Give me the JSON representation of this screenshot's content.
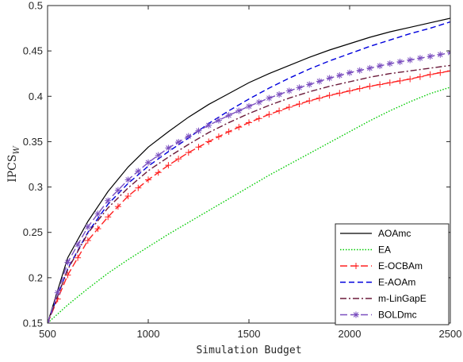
{
  "chart_data": {
    "type": "line",
    "title": "",
    "xlabel": "Simulation Budget",
    "ylabel": "IPCS",
    "ylabel_subscript": "W",
    "xlim": [
      500,
      2500
    ],
    "ylim": [
      0.15,
      0.5
    ],
    "xticks": [
      500,
      1000,
      1500,
      2000,
      2500
    ],
    "xtick_labels": [
      "500",
      "1000",
      "1500",
      "2000",
      "2500"
    ],
    "yticks": [
      0.15,
      0.2,
      0.25,
      0.3,
      0.35,
      0.4,
      0.45,
      0.5
    ],
    "ytick_labels": [
      "0.15",
      "0.2",
      "0.25",
      "0.3",
      "0.35",
      "0.4",
      "0.45",
      "0.5"
    ],
    "grid": false,
    "legend_position": "bottom-right",
    "x": [
      500,
      600,
      700,
      800,
      900,
      1000,
      1100,
      1200,
      1300,
      1400,
      1500,
      1600,
      1700,
      1800,
      1900,
      2000,
      2100,
      2200,
      2300,
      2400,
      2500
    ],
    "series": [
      {
        "name": "AOAmc",
        "color": "#000000",
        "dash": "",
        "marker": "",
        "values": [
          0.15,
          0.222,
          0.262,
          0.295,
          0.322,
          0.344,
          0.361,
          0.377,
          0.391,
          0.403,
          0.415,
          0.425,
          0.434,
          0.443,
          0.451,
          0.458,
          0.465,
          0.471,
          0.476,
          0.481,
          0.486
        ]
      },
      {
        "name": "EA",
        "color": "#00cc00",
        "dash": "1.5,2",
        "marker": "",
        "values": [
          0.15,
          0.17,
          0.188,
          0.205,
          0.22,
          0.234,
          0.248,
          0.261,
          0.274,
          0.287,
          0.3,
          0.313,
          0.325,
          0.337,
          0.349,
          0.361,
          0.373,
          0.384,
          0.394,
          0.403,
          0.41
        ]
      },
      {
        "name": "E-OCBAm",
        "color": "#ff2020",
        "dash": "9,4",
        "marker": "plus",
        "values": [
          0.15,
          0.203,
          0.241,
          0.267,
          0.29,
          0.308,
          0.324,
          0.338,
          0.35,
          0.361,
          0.371,
          0.38,
          0.388,
          0.395,
          0.401,
          0.406,
          0.411,
          0.415,
          0.419,
          0.424,
          0.428
        ]
      },
      {
        "name": "E-AOAm",
        "color": "#0000dd",
        "dash": "7,4",
        "marker": "",
        "values": [
          0.15,
          0.21,
          0.25,
          0.281,
          0.304,
          0.323,
          0.339,
          0.354,
          0.37,
          0.384,
          0.397,
          0.409,
          0.42,
          0.43,
          0.439,
          0.447,
          0.455,
          0.462,
          0.469,
          0.475,
          0.482
        ]
      },
      {
        "name": "m-LinGapE",
        "color": "#6b1a3a",
        "dash": "8,3,2,3",
        "marker": "",
        "values": [
          0.15,
          0.209,
          0.249,
          0.277,
          0.299,
          0.318,
          0.333,
          0.347,
          0.36,
          0.371,
          0.381,
          0.39,
          0.398,
          0.405,
          0.411,
          0.416,
          0.421,
          0.425,
          0.428,
          0.431,
          0.434
        ]
      },
      {
        "name": "BOLDmc",
        "color": "#7b4fbf",
        "dash": "9,4",
        "marker": "star",
        "values": [
          0.15,
          0.217,
          0.256,
          0.285,
          0.308,
          0.327,
          0.343,
          0.356,
          0.368,
          0.379,
          0.389,
          0.398,
          0.406,
          0.413,
          0.42,
          0.426,
          0.431,
          0.436,
          0.44,
          0.444,
          0.448
        ]
      }
    ]
  }
}
